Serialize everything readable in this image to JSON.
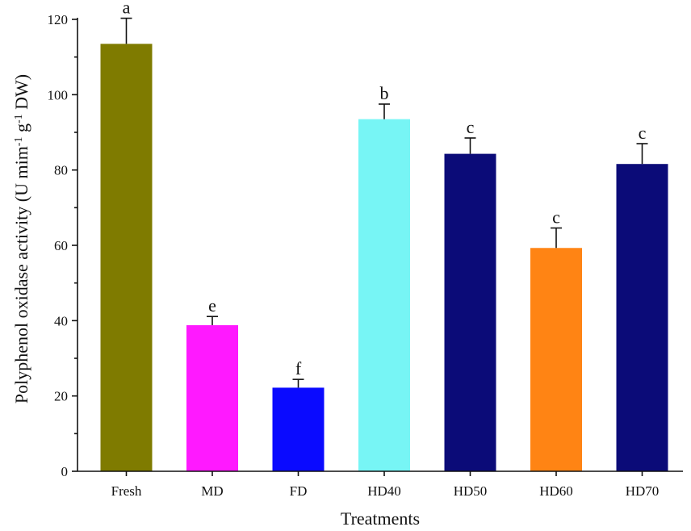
{
  "chart_data": {
    "type": "bar",
    "categories": [
      "Fresh",
      "MD",
      "FD",
      "HD40",
      "HD50",
      "HD60",
      "HD70"
    ],
    "values": [
      113.5,
      38.8,
      22.2,
      93.5,
      84.3,
      59.3,
      81.6
    ],
    "errors": [
      6.8,
      2.3,
      2.2,
      4.0,
      4.2,
      5.3,
      5.4
    ],
    "significance": [
      "a",
      "e",
      "f",
      "b",
      "c",
      "c",
      "c"
    ],
    "colors": [
      "#7f7b00",
      "#ff19ff",
      "#0a0aff",
      "#77f5f5",
      "#0b0b78",
      "#ff8414",
      "#0b0b78"
    ],
    "xlabel": "Treatments",
    "ylabel_parts": {
      "a": "Polyphenol oxidase activity (U mim",
      "sup1": "-1",
      "b": " g",
      "sup2": "-1",
      "c": " DW)"
    },
    "ylim": [
      0,
      120
    ],
    "yticks": [
      0,
      20,
      40,
      60,
      80,
      100,
      120
    ],
    "grid": false,
    "legend": "none"
  }
}
